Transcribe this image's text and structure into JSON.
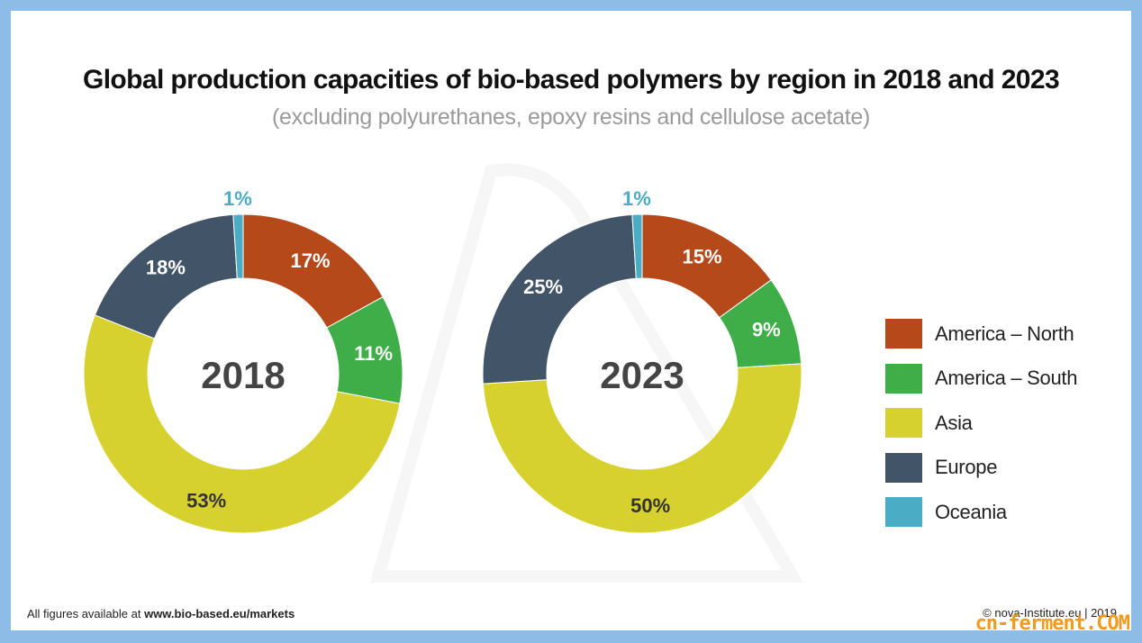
{
  "title": "Global production capacities of bio-based polymers by region in 2018 and 2023",
  "subtitle": "(excluding polyurethanes, epoxy resins and cellulose acetate)",
  "footer": {
    "prefix": "All figures available at ",
    "link": "www.bio-based.eu/markets",
    "copyright": "© nova-Institute.eu | 2019",
    "watermark": "cn-ferment.COM"
  },
  "colors": {
    "America – North": "#b5491a",
    "America – South": "#3fae49",
    "Asia": "#d7d12f",
    "Europe": "#425468",
    "Oceania": "#4bacc6"
  },
  "chart_data": [
    {
      "type": "pie",
      "center_label": "2018",
      "categories": [
        "America – North",
        "America – South",
        "Asia",
        "Europe",
        "Oceania"
      ],
      "values": [
        17,
        11,
        53,
        18,
        1
      ],
      "labels": [
        "17%",
        "11%",
        "53%",
        "18%",
        "1%"
      ],
      "legend": "right"
    },
    {
      "type": "pie",
      "center_label": "2023",
      "categories": [
        "America – North",
        "America – South",
        "Asia",
        "Europe",
        "Oceania"
      ],
      "values": [
        15,
        9,
        50,
        25,
        1
      ],
      "labels": [
        "15%",
        "9%",
        "50%",
        "25%",
        "1%"
      ],
      "legend": "right"
    }
  ]
}
